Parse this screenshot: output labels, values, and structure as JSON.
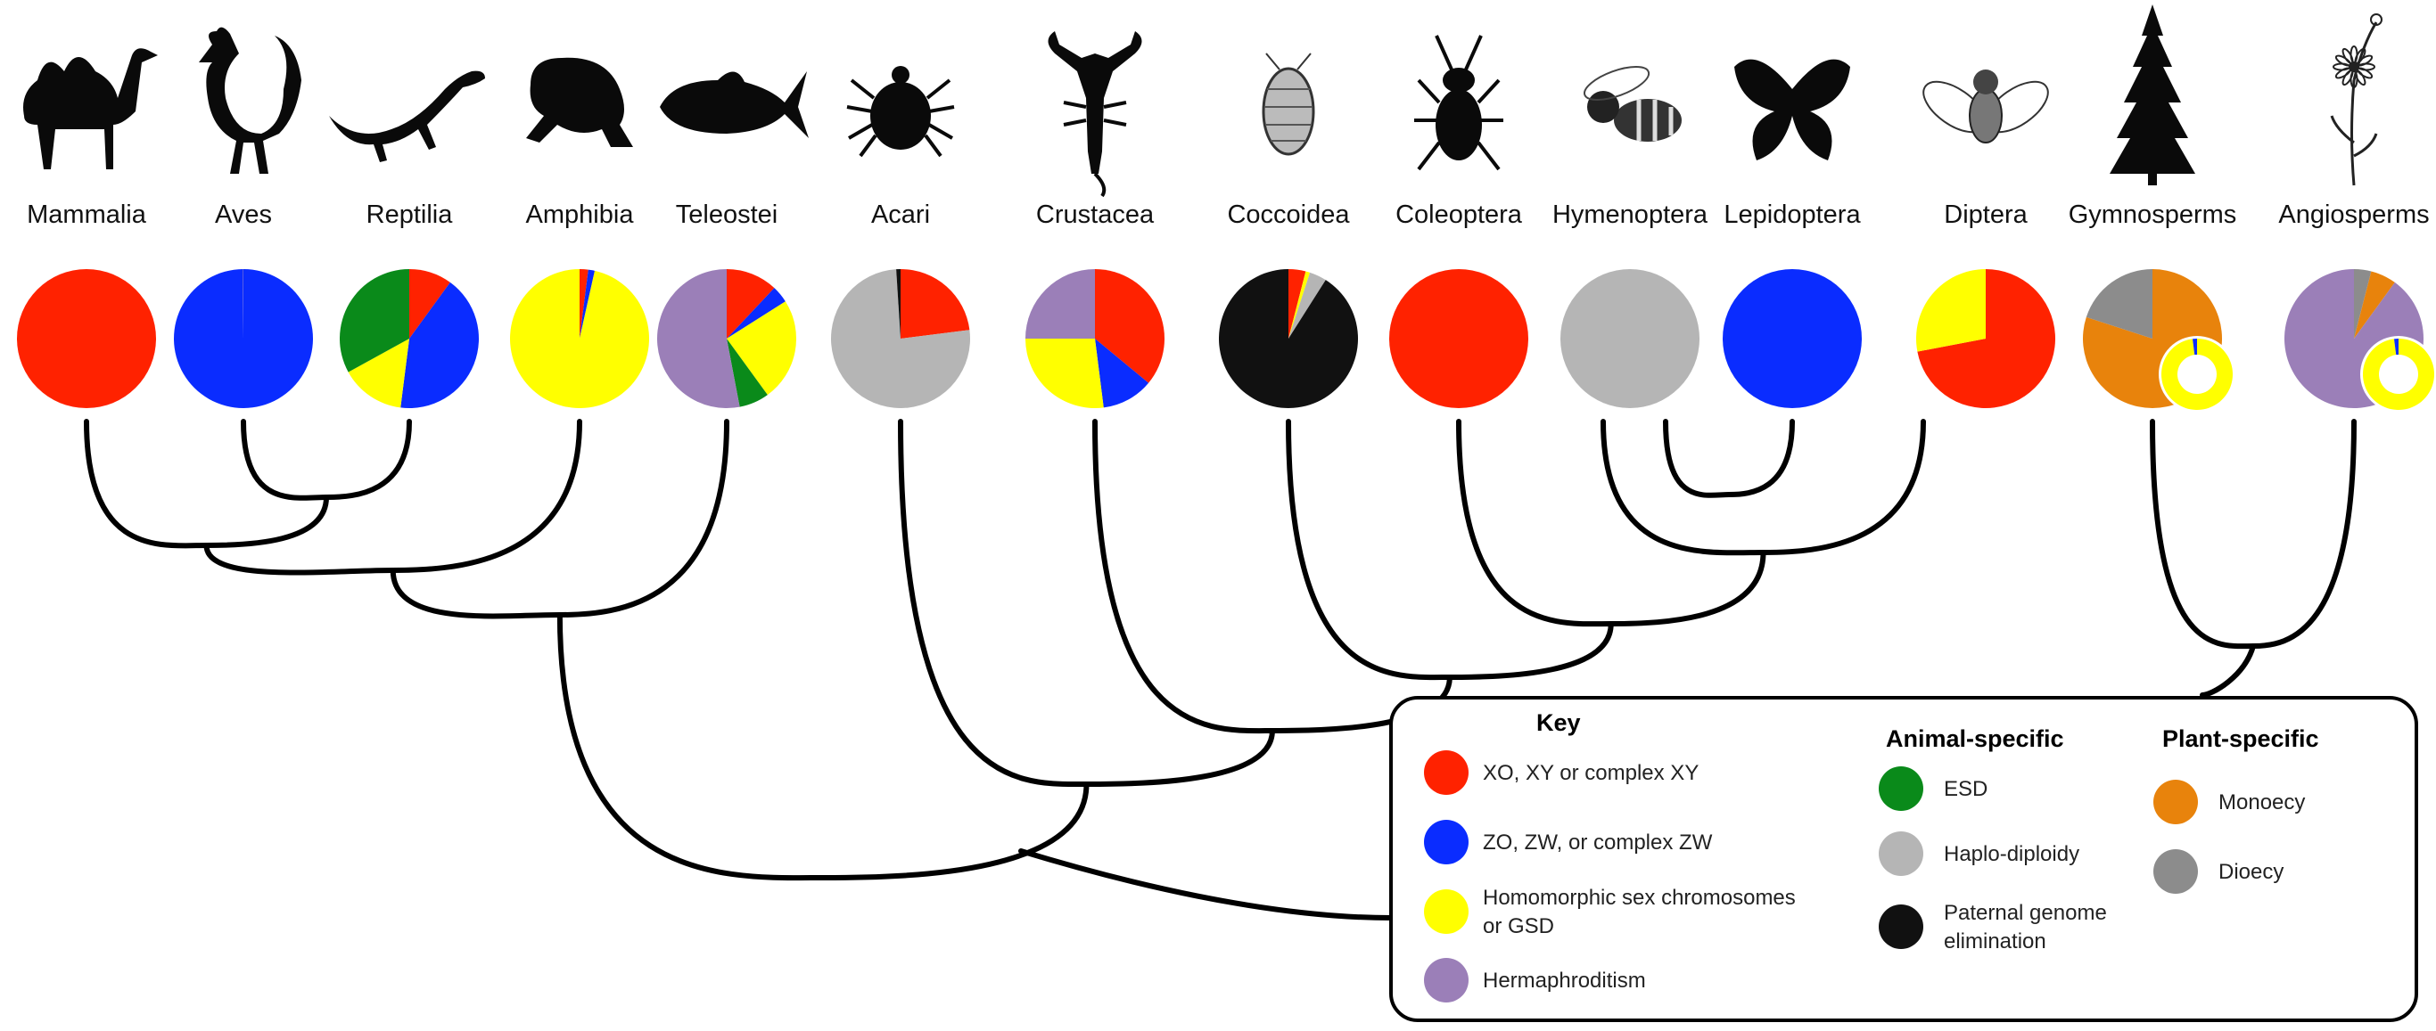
{
  "colors": {
    "xy": "#ff2200",
    "zw": "#0a2cff",
    "gsd": "#ffff00",
    "herm": "#9b7fb8",
    "esd": "#0a8a1a",
    "haplo": "#b5b5b5",
    "pge": "#111111",
    "monoecy": "#e8830c",
    "dioecy": "#8c8c8c"
  },
  "taxa": [
    {
      "label": "Mammalia",
      "icon": "camel-icon",
      "pie": [
        [
          "xy",
          1
        ]
      ]
    },
    {
      "label": "Aves",
      "icon": "rooster-icon",
      "pie": [
        [
          "zw",
          0.999
        ],
        [
          "herm",
          0.001
        ]
      ]
    },
    {
      "label": "Reptilia",
      "icon": "lizard-icon",
      "pie": [
        [
          "xy",
          0.1
        ],
        [
          "zw",
          0.42
        ],
        [
          "gsd",
          0.15
        ],
        [
          "esd",
          0.33
        ]
      ]
    },
    {
      "label": "Amphibia",
      "icon": "frog-icon",
      "pie": [
        [
          "xy",
          0.02
        ],
        [
          "zw",
          0.015
        ],
        [
          "gsd",
          0.965
        ]
      ]
    },
    {
      "label": "Teleostei",
      "icon": "fish-icon",
      "pie": [
        [
          "xy",
          0.12
        ],
        [
          "zw",
          0.04
        ],
        [
          "gsd",
          0.24
        ],
        [
          "esd",
          0.07
        ],
        [
          "herm",
          0.53
        ]
      ]
    },
    {
      "label": "Acari",
      "icon": "tick-icon",
      "pie": [
        [
          "xy",
          0.23
        ],
        [
          "haplo",
          0.76
        ],
        [
          "pge",
          0.01
        ]
      ]
    },
    {
      "label": "Crustacea",
      "icon": "scorpion-icon",
      "pie": [
        [
          "xy",
          0.36
        ],
        [
          "zw",
          0.12
        ],
        [
          "gsd",
          0.27
        ],
        [
          "herm",
          0.25
        ]
      ]
    },
    {
      "label": "Coccoidea",
      "icon": "scale-insect-icon",
      "pie": [
        [
          "xy",
          0.04
        ],
        [
          "gsd",
          0.01
        ],
        [
          "haplo",
          0.04
        ],
        [
          "pge",
          0.91
        ]
      ]
    },
    {
      "label": "Coleoptera",
      "icon": "beetle-icon",
      "pie": [
        [
          "xy",
          1
        ]
      ]
    },
    {
      "label": "Hymenoptera",
      "icon": "bee-icon",
      "pie": [
        [
          "haplo",
          1
        ]
      ]
    },
    {
      "label": "Lepidoptera",
      "icon": "butterfly-icon",
      "pie": [
        [
          "zw",
          1
        ]
      ]
    },
    {
      "label": "Diptera",
      "icon": "fly-icon",
      "pie": [
        [
          "xy",
          0.72
        ],
        [
          "gsd",
          0.28
        ]
      ]
    },
    {
      "label": "Gymnosperms",
      "icon": "conifer-icon",
      "pie": [
        [
          "monoecy",
          0.8
        ],
        [
          "dioecy",
          0.2
        ]
      ],
      "ring": [
        [
          "gsd",
          0.98
        ],
        [
          "zw",
          0.02
        ]
      ]
    },
    {
      "label": "Angiosperms",
      "icon": "flower-icon",
      "pie": [
        [
          "dioecy",
          0.04
        ],
        [
          "monoecy",
          0.06
        ],
        [
          "herm",
          0.9
        ]
      ],
      "ring": [
        [
          "gsd",
          0.98
        ],
        [
          "zw",
          0.02
        ]
      ]
    }
  ],
  "key": {
    "title": "Key",
    "general": [
      {
        "color": "xy",
        "lines": [
          "XO, XY or complex XY"
        ]
      },
      {
        "color": "zw",
        "lines": [
          "ZO, ZW, or complex ZW"
        ]
      },
      {
        "color": "gsd",
        "lines": [
          "Homomorphic sex chromosomes",
          "or GSD"
        ]
      },
      {
        "color": "herm",
        "lines": [
          "Hermaphroditism"
        ]
      }
    ],
    "animal_title": "Animal-specific",
    "animal": [
      {
        "color": "esd",
        "lines": [
          "ESD"
        ]
      },
      {
        "color": "haplo",
        "lines": [
          "Haplo-diploidy"
        ]
      },
      {
        "color": "pge",
        "lines": [
          "Paternal genome",
          "elimination"
        ]
      }
    ],
    "plant_title": "Plant-specific",
    "plant": [
      {
        "color": "monoecy",
        "lines": [
          "Monoecy"
        ]
      },
      {
        "color": "dioecy",
        "lines": [
          "Dioecy"
        ]
      }
    ]
  }
}
